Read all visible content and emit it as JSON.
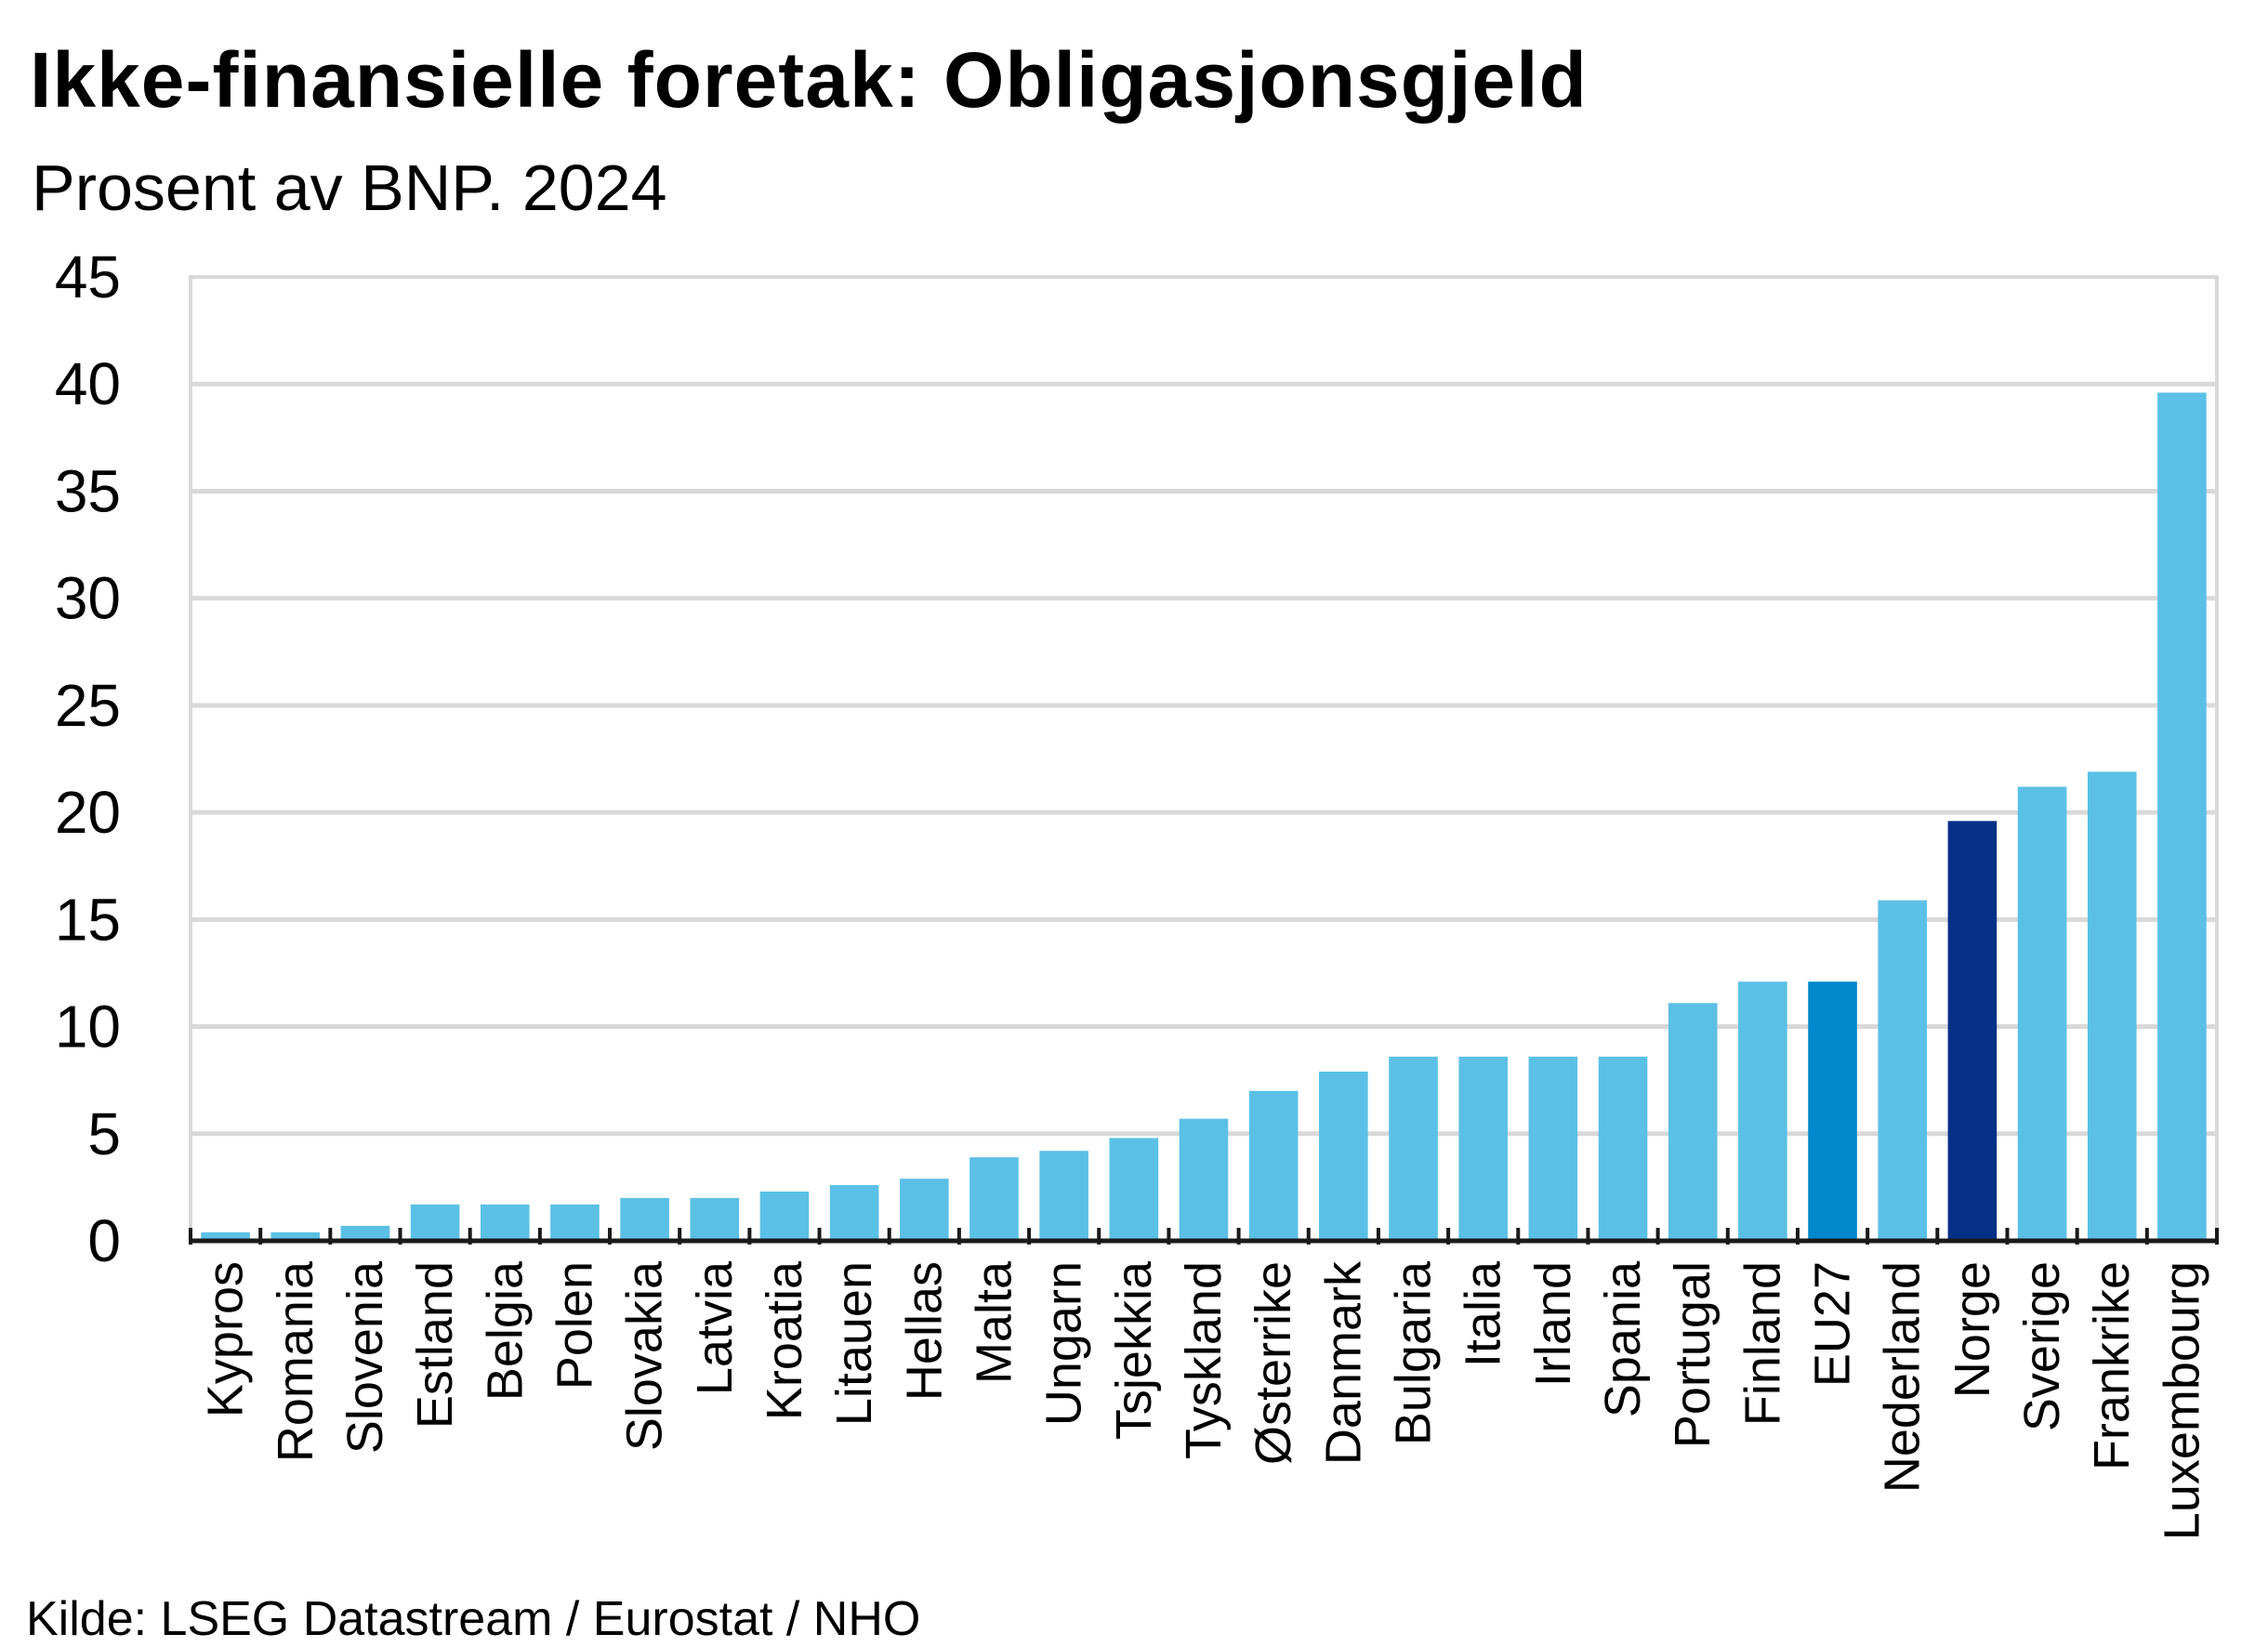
{
  "title": "Ikke-finansielle foretak: Obligasjonsgjeld",
  "subtitle": "Prosent av BNP. 2024",
  "source": "Kilde: LSEG Datastream / Eurostat / NHO",
  "colors": {
    "default_bar": "#5bc0e6",
    "eu27_bar": "#0088cc",
    "norway_bar": "#053087",
    "grid": "#d9d9d9",
    "axis": "#1a1a1a",
    "frame": "#d9d9d9"
  },
  "chart_data": {
    "type": "bar",
    "title": "Ikke-finansielle foretak: Obligasjonsgjeld",
    "subtitle": "Prosent av BNP. 2024",
    "xlabel": "",
    "ylabel": "",
    "ylim": [
      0,
      45
    ],
    "yticks": [
      0,
      5,
      10,
      15,
      20,
      25,
      30,
      35,
      40,
      45
    ],
    "grid": true,
    "categories": [
      "Kypros",
      "Romania",
      "Slovenia",
      "Estland",
      "Belgia",
      "Polen",
      "Slovakia",
      "Latvia",
      "Kroatia",
      "Litauen",
      "Hellas",
      "Malta",
      "Ungarn",
      "Tsjekkia",
      "Tyskland",
      "Østerrike",
      "Danmark",
      "Bulgaria",
      "Italia",
      "Irland",
      "Spania",
      "Portugal",
      "Finland",
      "EU27",
      "Nederland",
      "Norge",
      "Sverige",
      "Frankrike",
      "Luxembourg"
    ],
    "values": [
      0.4,
      0.4,
      0.7,
      1.7,
      1.7,
      1.7,
      2.0,
      2.0,
      2.3,
      2.6,
      2.9,
      3.9,
      4.2,
      4.8,
      5.7,
      7.0,
      7.9,
      8.6,
      8.6,
      8.6,
      8.6,
      11.1,
      12.1,
      12.1,
      15.9,
      19.6,
      21.2,
      21.9,
      39.6
    ],
    "highlight": {
      "EU27": "eu27_bar",
      "Norge": "norway_bar"
    }
  }
}
